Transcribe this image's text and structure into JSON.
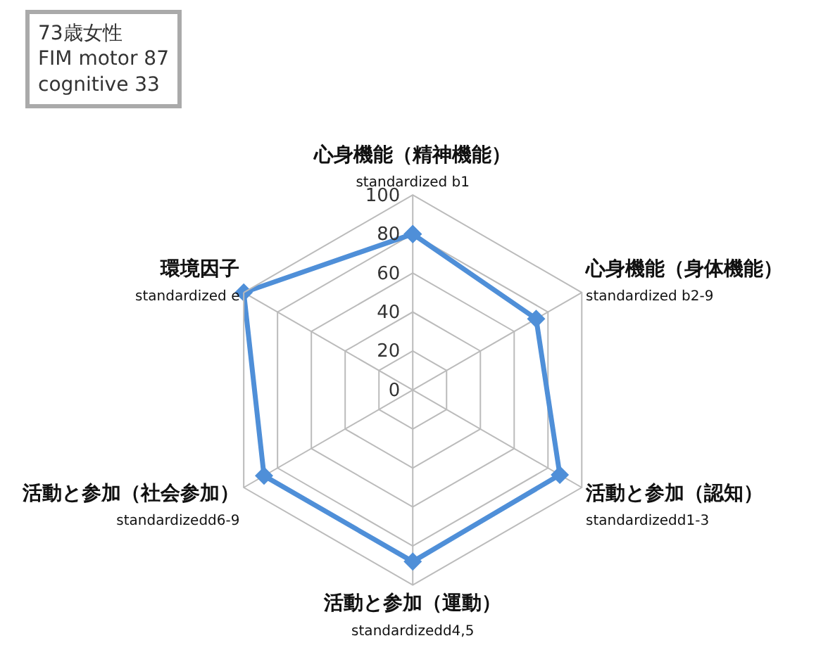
{
  "chart_data": {
    "type": "radar",
    "categories": [
      "心身機能（精神機能）\nstandardized b1",
      "心身機能（身体機能）\nstandardized b2-9",
      "活動と参加（認知）\nstandardizedd1-3",
      "活動と参加（運動）\nstandardizedd4,5",
      "活動と参加（社会参加）\nstandardizedd6-9",
      "環境因子\nstandardized e"
    ],
    "series": [
      {
        "color": "#4f8fd8",
        "values": [
          80,
          73,
          87,
          88,
          88,
          100
        ]
      }
    ],
    "ylim": [
      0,
      100
    ],
    "yticks": [
      0,
      20,
      40,
      60,
      80,
      100
    ],
    "grid": true,
    "marker": "diamond",
    "line_style": "solid",
    "annotations": [
      "73歳女性\nFIM motor 87\ncognitive 33"
    ]
  }
}
